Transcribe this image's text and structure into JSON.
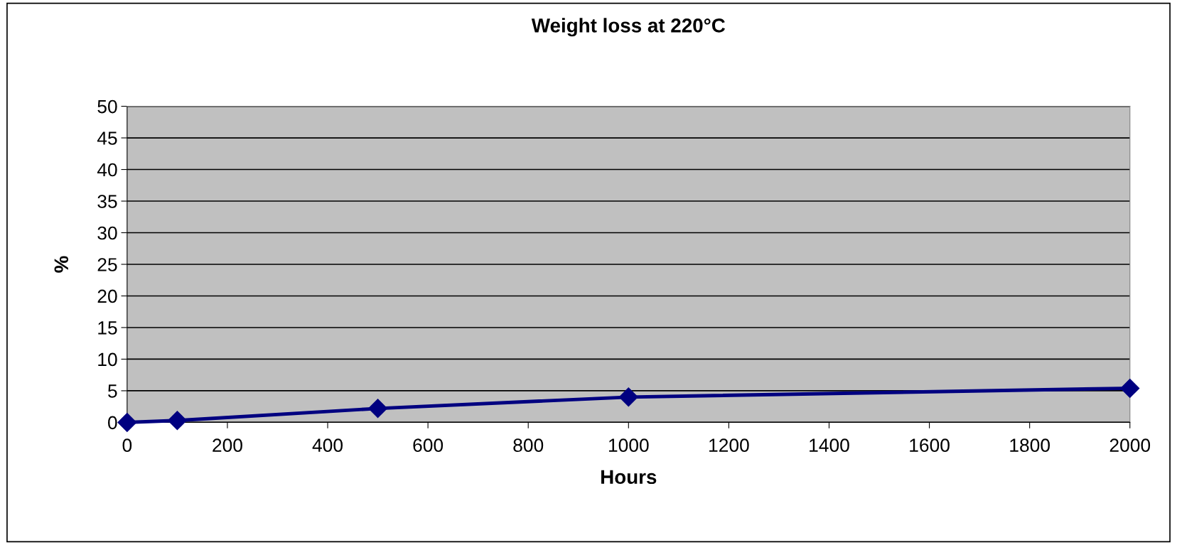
{
  "chart_data": {
    "type": "line",
    "title": "Weight loss at 220°C",
    "xlabel": "Hours",
    "ylabel": "%",
    "x": [
      0,
      100,
      500,
      1000,
      2000
    ],
    "series": [
      {
        "color": "#000080",
        "values": [
          0,
          0.3,
          2.2,
          4.0,
          5.4
        ]
      }
    ],
    "xlim": [
      0,
      2000
    ],
    "xticks": [
      0,
      200,
      400,
      600,
      800,
      1000,
      1200,
      1400,
      1600,
      1800,
      2000
    ],
    "ylim": [
      0,
      50
    ],
    "yticks": [
      0,
      5,
      10,
      15,
      20,
      25,
      30,
      35,
      40,
      45,
      50
    ],
    "grid": "y",
    "marker": "diamond",
    "line_style": "solid",
    "legend": false
  }
}
